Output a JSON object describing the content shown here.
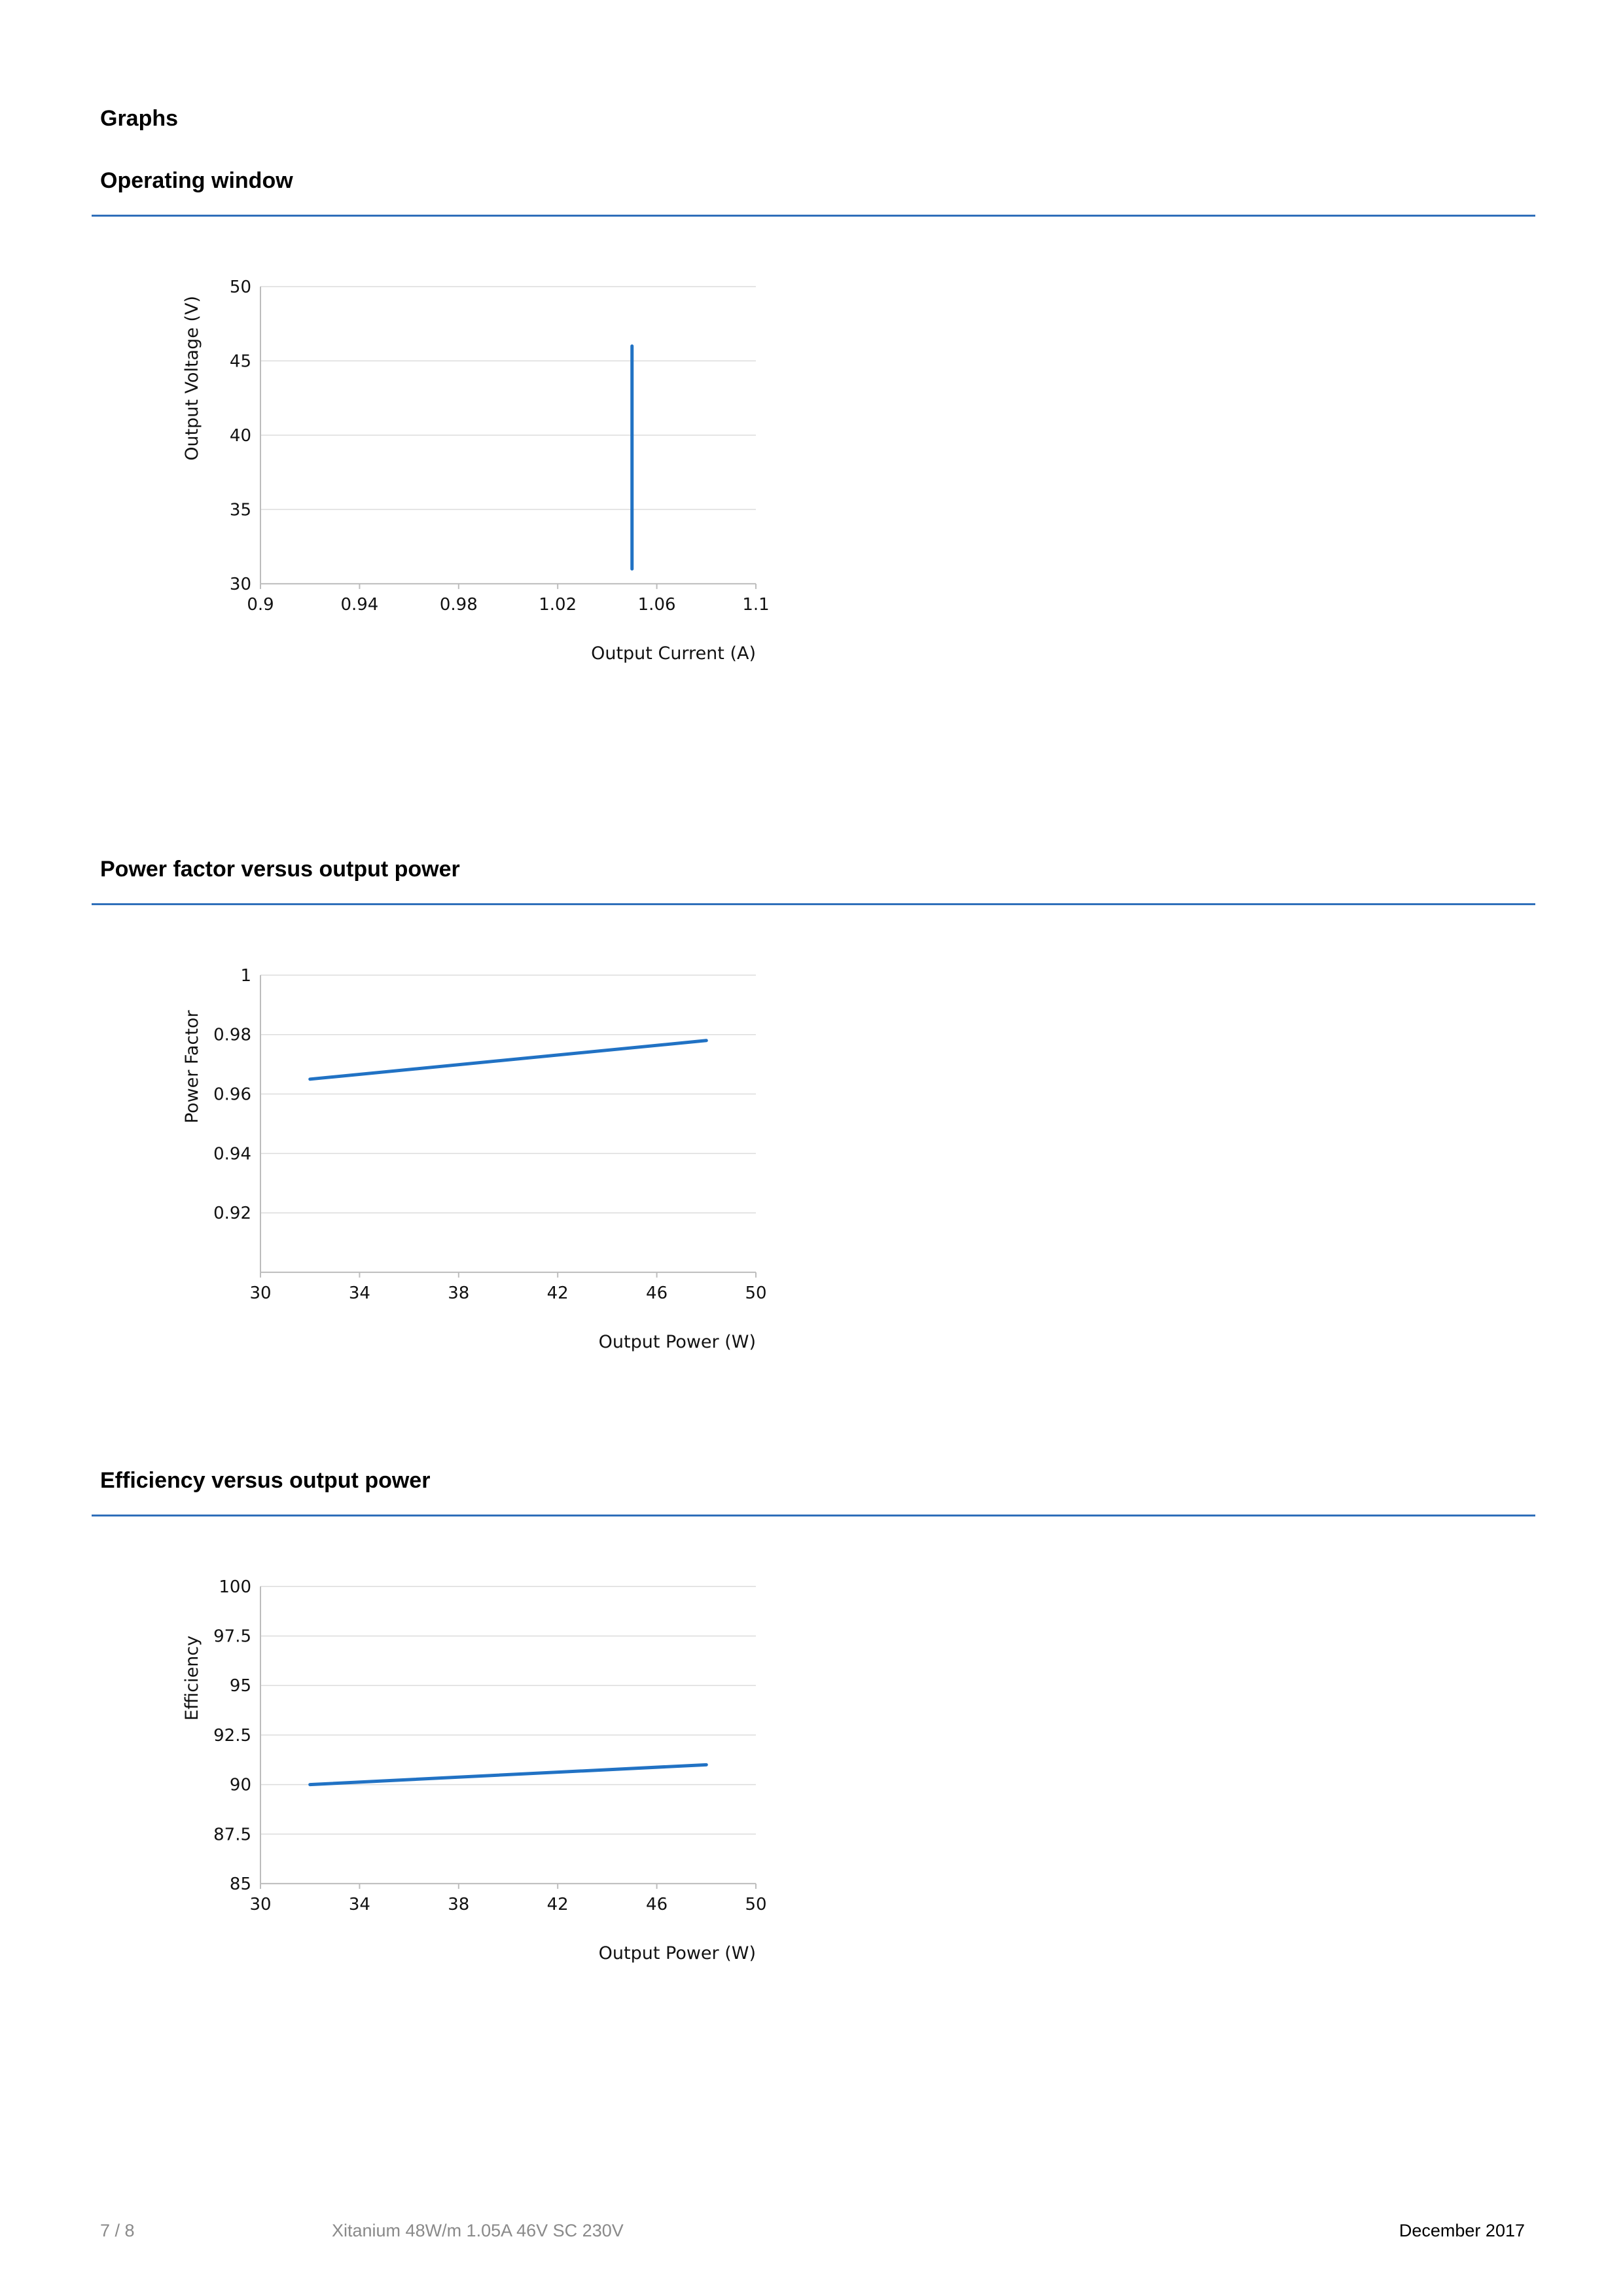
{
  "page": {
    "heading": "Graphs"
  },
  "sections": [
    {
      "title": "Operating window"
    },
    {
      "title": "Power factor versus output power"
    },
    {
      "title": "Efficiency versus output power"
    }
  ],
  "colors": {
    "accent": "#2f6fba",
    "line": "#2172c4",
    "grid": "#dcdcdc"
  },
  "chart_data": [
    {
      "type": "line",
      "xlabel": "Output Current (A)",
      "ylabel": "Output Voltage (V)",
      "xlim": [
        0.9,
        1.1
      ],
      "ylim": [
        30,
        50
      ],
      "xticks": [
        "0.9",
        "0.94",
        "0.98",
        "1.02",
        "1.06",
        "1.1"
      ],
      "yticks": [
        "30",
        "35",
        "40",
        "45",
        "50"
      ],
      "grid": true,
      "series": [
        {
          "x": [
            1.05,
            1.05
          ],
          "y": [
            31,
            46
          ]
        }
      ]
    },
    {
      "type": "line",
      "xlabel": "Output Power (W)",
      "ylabel": "Power Factor",
      "xlim": [
        30,
        50
      ],
      "ylim": [
        0.9,
        1.0
      ],
      "xticks": [
        "30",
        "34",
        "38",
        "42",
        "46",
        "50"
      ],
      "yticks": [
        "0.92",
        "0.94",
        "0.96",
        "0.98",
        "1"
      ],
      "grid": true,
      "series": [
        {
          "x": [
            32,
            48
          ],
          "y": [
            0.965,
            0.978
          ]
        }
      ]
    },
    {
      "type": "line",
      "xlabel": "Output Power (W)",
      "ylabel": "Efficiency",
      "xlim": [
        30,
        50
      ],
      "ylim": [
        85,
        100
      ],
      "xticks": [
        "30",
        "34",
        "38",
        "42",
        "46",
        "50"
      ],
      "yticks": [
        "85",
        "87.5",
        "90",
        "92.5",
        "95",
        "97.5",
        "100"
      ],
      "grid": true,
      "series": [
        {
          "x": [
            32,
            48
          ],
          "y": [
            90,
            91
          ]
        }
      ]
    }
  ],
  "footer": {
    "page_number": "7 / 8",
    "product": "Xitanium 48W/m 1.05A 46V SC 230V",
    "date": "December 2017"
  }
}
